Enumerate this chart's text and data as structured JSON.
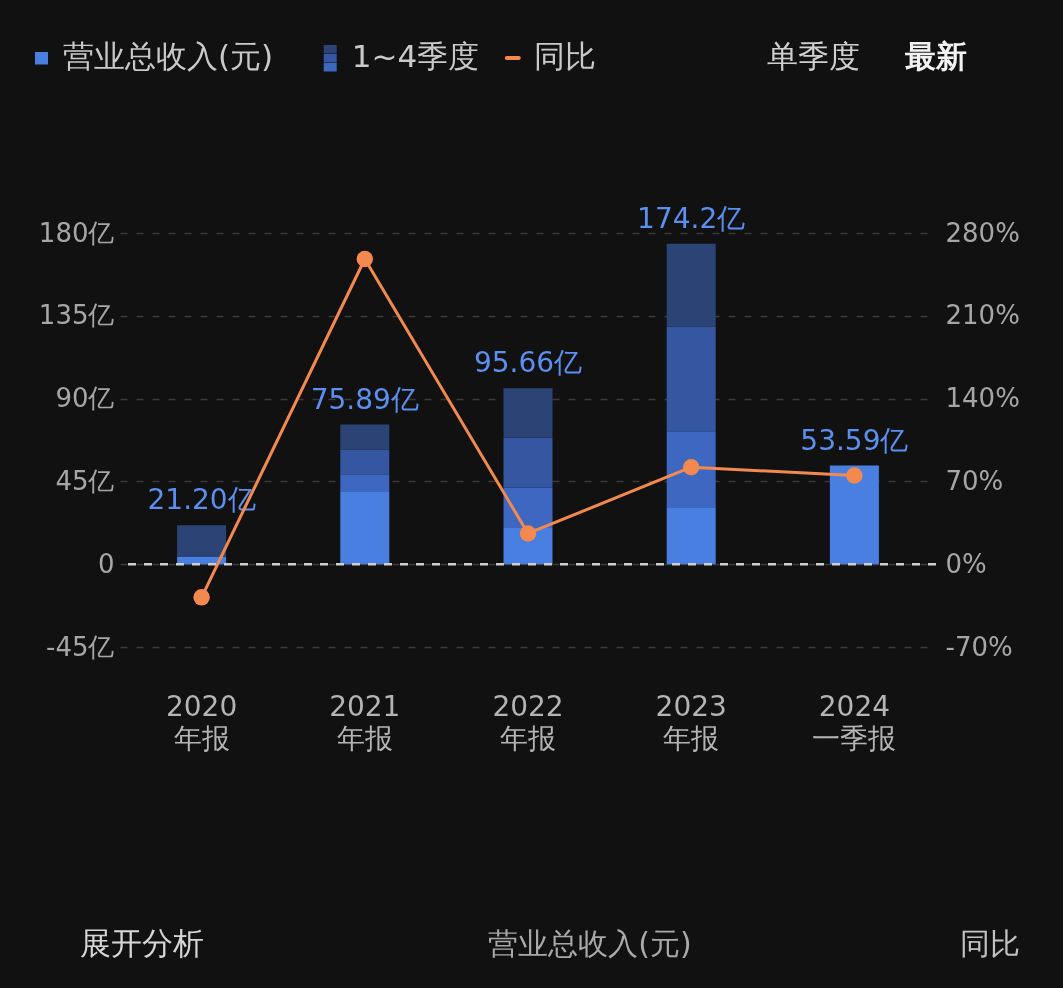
{
  "chart_data": {
    "type": "bar",
    "stacked": true,
    "categories": [
      "2020\n年报",
      "2021\n年报",
      "2022\n年报",
      "2023\n年报",
      "2024\n一季报"
    ],
    "series": [
      {
        "name": "营业总收入(元)",
        "color": "#4a7fe2",
        "values": [
          3.9,
          39.3,
          19.7,
          30.5,
          53.59
        ]
      },
      {
        "name": "1~4季度",
        "color": "#3d67c0",
        "values": [
          null,
          9.6,
          21.8,
          41.8,
          null
        ]
      },
      {
        "color": "#3556a0",
        "values": [
          null,
          13.4,
          27.2,
          56.7,
          null
        ]
      },
      {
        "color": "#2c4475",
        "values": [
          17.3,
          13.59,
          26.96,
          45.2,
          null
        ]
      },
      {
        "name": "同比",
        "type": "line",
        "axis": "y2",
        "color": "#f3894f",
        "values": [
          -28,
          258,
          26,
          82,
          75
        ]
      }
    ],
    "totals": [
      "21.20亿",
      "75.89亿",
      "95.66亿",
      "174.2亿",
      "53.59亿"
    ],
    "ylim": [
      -45,
      180
    ],
    "yticks": [
      {
        "value": -45,
        "label": "-45亿"
      },
      0,
      {
        "value": 45,
        "label": "45亿"
      },
      {
        "value": 90,
        "label": "90亿"
      },
      {
        "value": 135,
        "label": "135亿"
      },
      {
        "value": 180,
        "label": "180亿"
      }
    ],
    "y2lim": [
      -70,
      280
    ],
    "y2ticks": [
      {
        "value": -70,
        "label": "-70%"
      },
      {
        "value": 0,
        "label": "0%"
      },
      {
        "value": 70,
        "label": "70%"
      },
      {
        "value": 140,
        "label": "140%"
      },
      {
        "value": 210,
        "label": "210%"
      },
      {
        "value": 280,
        "label": "280%"
      }
    ],
    "ref_lines": [
      {
        "axis": "y",
        "value": 0,
        "color": "#cfcfcf",
        "line_style": "dashed"
      }
    ],
    "grid": "y",
    "legend": "top left",
    "marker": "circle",
    "annotations": [
      "单季度",
      "最新",
      "展开分析",
      "营业总收入(元)",
      "同比"
    ]
  }
}
